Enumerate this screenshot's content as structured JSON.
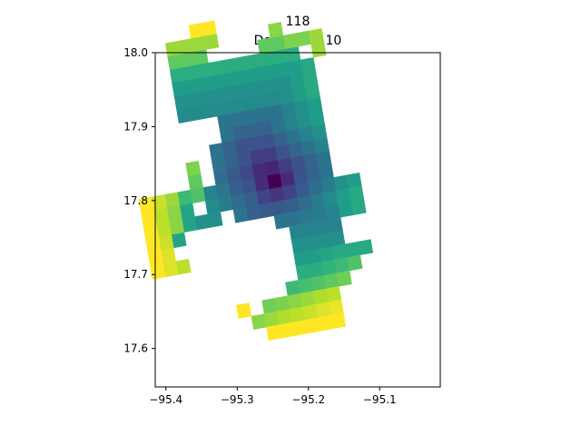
{
  "chart_data": {
    "type": "heatmap",
    "title": "118",
    "subtitle": "Degrees = 10",
    "xlabel": "",
    "ylabel": "",
    "xlim": [
      -95.415,
      -95.015
    ],
    "ylim": [
      17.548,
      18.0
    ],
    "x_ticks": [
      -95.4,
      -95.3,
      -95.2,
      -95.1
    ],
    "x_tick_labels": [
      "−95.4",
      "−95.3",
      "−95.2",
      "−95.1"
    ],
    "y_ticks": [
      17.6,
      17.7,
      17.8,
      17.9,
      18.0
    ],
    "y_tick_labels": [
      "17.6",
      "17.7",
      "17.8",
      "17.9",
      "18.0"
    ],
    "grid": false,
    "colormap": "viridis",
    "rotation_degrees": 10,
    "center": [
      -95.1836,
      17.7815
    ],
    "cell_size_deg": 0.0183,
    "cells": [
      {
        "i": -7,
        "j": 15,
        "v": 1.0
      },
      {
        "i": -6,
        "j": 15,
        "v": 1.0
      },
      {
        "i": -9,
        "j": 14,
        "v": 0.85
      },
      {
        "i": -8,
        "j": 14,
        "v": 0.85
      },
      {
        "i": -7,
        "j": 14,
        "v": 0.85
      },
      {
        "i": -6,
        "j": 14,
        "v": 0.85
      },
      {
        "i": -9,
        "j": 13,
        "v": 0.75
      },
      {
        "i": -8,
        "j": 13,
        "v": 0.75
      },
      {
        "i": -7,
        "j": 13,
        "v": 0.75
      },
      {
        "i": -9,
        "j": 12,
        "v": 0.62
      },
      {
        "i": -8,
        "j": 12,
        "v": 0.62
      },
      {
        "i": -7,
        "j": 12,
        "v": 0.62
      },
      {
        "i": -6,
        "j": 12,
        "v": 0.62
      },
      {
        "i": -5,
        "j": 12,
        "v": 0.62
      },
      {
        "i": -4,
        "j": 12,
        "v": 0.62
      },
      {
        "i": -3,
        "j": 12,
        "v": 0.62
      },
      {
        "i": -2,
        "j": 12,
        "v": 0.62
      },
      {
        "i": -1,
        "j": 12,
        "v": 0.62
      },
      {
        "i": 0,
        "j": 12,
        "v": 0.62
      },
      {
        "i": -9,
        "j": 11,
        "v": 0.55
      },
      {
        "i": -8,
        "j": 11,
        "v": 0.55
      },
      {
        "i": -7,
        "j": 11,
        "v": 0.55
      },
      {
        "i": -6,
        "j": 11,
        "v": 0.55
      },
      {
        "i": -5,
        "j": 11,
        "v": 0.55
      },
      {
        "i": -4,
        "j": 11,
        "v": 0.55
      },
      {
        "i": -3,
        "j": 11,
        "v": 0.55
      },
      {
        "i": -2,
        "j": 11,
        "v": 0.55
      },
      {
        "i": -1,
        "j": 11,
        "v": 0.55
      },
      {
        "i": 0,
        "j": 11,
        "v": 0.55
      },
      {
        "i": 1,
        "j": 11,
        "v": 0.6
      },
      {
        "i": -9,
        "j": 10,
        "v": 0.5
      },
      {
        "i": -8,
        "j": 10,
        "v": 0.5
      },
      {
        "i": -7,
        "j": 10,
        "v": 0.5
      },
      {
        "i": -6,
        "j": 10,
        "v": 0.5
      },
      {
        "i": -5,
        "j": 10,
        "v": 0.5
      },
      {
        "i": -4,
        "j": 10,
        "v": 0.5
      },
      {
        "i": -3,
        "j": 10,
        "v": 0.5
      },
      {
        "i": -2,
        "j": 10,
        "v": 0.5
      },
      {
        "i": -1,
        "j": 10,
        "v": 0.5
      },
      {
        "i": 0,
        "j": 10,
        "v": 0.55
      },
      {
        "i": 1,
        "j": 10,
        "v": 0.6
      },
      {
        "i": -9,
        "j": 9,
        "v": 0.48
      },
      {
        "i": -8,
        "j": 9,
        "v": 0.48
      },
      {
        "i": -7,
        "j": 9,
        "v": 0.48
      },
      {
        "i": -6,
        "j": 9,
        "v": 0.48
      },
      {
        "i": -5,
        "j": 9,
        "v": 0.48
      },
      {
        "i": -4,
        "j": 9,
        "v": 0.48
      },
      {
        "i": -3,
        "j": 9,
        "v": 0.48
      },
      {
        "i": -2,
        "j": 9,
        "v": 0.48
      },
      {
        "i": -1,
        "j": 9,
        "v": 0.5
      },
      {
        "i": 0,
        "j": 9,
        "v": 0.55
      },
      {
        "i": 1,
        "j": 9,
        "v": 0.6
      },
      {
        "i": -2,
        "j": 13,
        "v": 0.75
      },
      {
        "i": -1,
        "j": 13,
        "v": 0.75
      },
      {
        "i": 0,
        "j": 13,
        "v": 0.8
      },
      {
        "i": 1,
        "j": 13,
        "v": 0.8
      },
      {
        "i": 2,
        "j": 13,
        "v": 0.85
      },
      {
        "i": 2,
        "j": 12,
        "v": 0.85
      },
      {
        "i": -1,
        "j": 14,
        "v": 0.82
      },
      {
        "i": -6,
        "j": 8,
        "v": 0.38
      },
      {
        "i": -5,
        "j": 8,
        "v": 0.38
      },
      {
        "i": -4,
        "j": 8,
        "v": 0.38
      },
      {
        "i": -3,
        "j": 8,
        "v": 0.38
      },
      {
        "i": -2,
        "j": 8,
        "v": 0.38
      },
      {
        "i": -1,
        "j": 8,
        "v": 0.45
      },
      {
        "i": 0,
        "j": 8,
        "v": 0.5
      },
      {
        "i": 1,
        "j": 8,
        "v": 0.55
      },
      {
        "i": -6,
        "j": 7,
        "v": 0.38
      },
      {
        "i": -5,
        "j": 7,
        "v": 0.32
      },
      {
        "i": -4,
        "j": 7,
        "v": 0.32
      },
      {
        "i": -3,
        "j": 7,
        "v": 0.32
      },
      {
        "i": -2,
        "j": 7,
        "v": 0.38
      },
      {
        "i": -1,
        "j": 7,
        "v": 0.45
      },
      {
        "i": 0,
        "j": 7,
        "v": 0.5
      },
      {
        "i": 1,
        "j": 7,
        "v": 0.55
      },
      {
        "i": -7,
        "j": 6,
        "v": 0.38
      },
      {
        "i": -6,
        "j": 6,
        "v": 0.32
      },
      {
        "i": -5,
        "j": 6,
        "v": 0.25
      },
      {
        "i": -4,
        "j": 6,
        "v": 0.25
      },
      {
        "i": -3,
        "j": 6,
        "v": 0.25
      },
      {
        "i": -2,
        "j": 6,
        "v": 0.32
      },
      {
        "i": -1,
        "j": 6,
        "v": 0.38
      },
      {
        "i": 0,
        "j": 6,
        "v": 0.45
      },
      {
        "i": 1,
        "j": 6,
        "v": 0.5
      },
      {
        "i": -7,
        "j": 5,
        "v": 0.38
      },
      {
        "i": -6,
        "j": 5,
        "v": 0.32
      },
      {
        "i": -5,
        "j": 5,
        "v": 0.25
      },
      {
        "i": -4,
        "j": 5,
        "v": 0.18
      },
      {
        "i": -3,
        "j": 5,
        "v": 0.18
      },
      {
        "i": -2,
        "j": 5,
        "v": 0.25
      },
      {
        "i": -1,
        "j": 5,
        "v": 0.32
      },
      {
        "i": 0,
        "j": 5,
        "v": 0.38
      },
      {
        "i": 1,
        "j": 5,
        "v": 0.45
      },
      {
        "i": -7,
        "j": 4,
        "v": 0.35
      },
      {
        "i": -6,
        "j": 4,
        "v": 0.28
      },
      {
        "i": -5,
        "j": 4,
        "v": 0.22
      },
      {
        "i": -4,
        "j": 4,
        "v": 0.12
      },
      {
        "i": -3,
        "j": 4,
        "v": 0.1
      },
      {
        "i": -2,
        "j": 4,
        "v": 0.18
      },
      {
        "i": -1,
        "j": 4,
        "v": 0.25
      },
      {
        "i": 0,
        "j": 4,
        "v": 0.32
      },
      {
        "i": 1,
        "j": 4,
        "v": 0.38
      },
      {
        "i": -8,
        "j": 3,
        "v": 0.45
      },
      {
        "i": -7,
        "j": 3,
        "v": 0.4
      },
      {
        "i": -6,
        "j": 3,
        "v": 0.3
      },
      {
        "i": -5,
        "j": 3,
        "v": 0.25
      },
      {
        "i": -4,
        "j": 3,
        "v": 0.12
      },
      {
        "i": -3,
        "j": 3,
        "v": 0.0
      },
      {
        "i": -2,
        "j": 3,
        "v": 0.12
      },
      {
        "i": -1,
        "j": 3,
        "v": 0.25
      },
      {
        "i": 0,
        "j": 3,
        "v": 0.32
      },
      {
        "i": 1,
        "j": 3,
        "v": 0.38
      },
      {
        "i": -8,
        "j": 2,
        "v": 0.48
      },
      {
        "i": -7,
        "j": 2,
        "v": 0.42
      },
      {
        "i": -6,
        "j": 2,
        "v": 0.35
      },
      {
        "i": -5,
        "j": 2,
        "v": 0.3
      },
      {
        "i": -4,
        "j": 2,
        "v": 0.2
      },
      {
        "i": -3,
        "j": 2,
        "v": 0.15
      },
      {
        "i": -2,
        "j": 2,
        "v": 0.2
      },
      {
        "i": -1,
        "j": 2,
        "v": 0.28
      },
      {
        "i": 0,
        "j": 2,
        "v": 0.35
      },
      {
        "i": 1,
        "j": 2,
        "v": 0.42
      },
      {
        "i": 2,
        "j": 2,
        "v": 0.5
      },
      {
        "i": 3,
        "j": 2,
        "v": 0.55
      },
      {
        "i": -9,
        "j": 1,
        "v": 0.5
      },
      {
        "i": -8,
        "j": 1,
        "v": 0.5
      },
      {
        "i": -6,
        "j": 1,
        "v": 0.38
      },
      {
        "i": -5,
        "j": 1,
        "v": 0.3
      },
      {
        "i": -4,
        "j": 1,
        "v": 0.28
      },
      {
        "i": -3,
        "j": 1,
        "v": 0.28
      },
      {
        "i": -2,
        "j": 1,
        "v": 0.3
      },
      {
        "i": -1,
        "j": 1,
        "v": 0.35
      },
      {
        "i": 0,
        "j": 1,
        "v": 0.42
      },
      {
        "i": 1,
        "j": 1,
        "v": 0.48
      },
      {
        "i": 2,
        "j": 1,
        "v": 0.55
      },
      {
        "i": 3,
        "j": 1,
        "v": 0.6
      },
      {
        "i": -3,
        "j": 0,
        "v": 0.38
      },
      {
        "i": -2,
        "j": 0,
        "v": 0.38
      },
      {
        "i": -1,
        "j": 0,
        "v": 0.4
      },
      {
        "i": 0,
        "j": 0,
        "v": 0.42
      },
      {
        "i": 1,
        "j": 0,
        "v": 0.45
      },
      {
        "i": 2,
        "j": 0,
        "v": 0.55
      },
      {
        "i": 3,
        "j": 0,
        "v": 0.6
      },
      {
        "i": -2,
        "j": -1,
        "v": 0.45
      },
      {
        "i": -1,
        "j": -1,
        "v": 0.45
      },
      {
        "i": 0,
        "j": -1,
        "v": 0.45
      },
      {
        "i": 1,
        "j": -1,
        "v": 0.45
      },
      {
        "i": -2,
        "j": -2,
        "v": 0.5
      },
      {
        "i": -1,
        "j": -2,
        "v": 0.5
      },
      {
        "i": 0,
        "j": -2,
        "v": 0.5
      },
      {
        "i": 1,
        "j": -2,
        "v": 0.5
      },
      {
        "i": -2,
        "j": -3,
        "v": 0.55
      },
      {
        "i": -1,
        "j": -3,
        "v": 0.55
      },
      {
        "i": 0,
        "j": -3,
        "v": 0.58
      },
      {
        "i": 1,
        "j": -3,
        "v": 0.6
      },
      {
        "i": 2,
        "j": -3,
        "v": 0.6
      },
      {
        "i": 3,
        "j": -3,
        "v": 0.6
      },
      {
        "i": -2,
        "j": -4,
        "v": 0.62
      },
      {
        "i": -1,
        "j": -4,
        "v": 0.62
      },
      {
        "i": 0,
        "j": -4,
        "v": 0.65
      },
      {
        "i": 1,
        "j": -4,
        "v": 0.68
      },
      {
        "i": 2,
        "j": -4,
        "v": 0.72
      },
      {
        "i": -3,
        "j": -5,
        "v": 0.68
      },
      {
        "i": -2,
        "j": -5,
        "v": 0.7
      },
      {
        "i": -1,
        "j": -5,
        "v": 0.72
      },
      {
        "i": 0,
        "j": -5,
        "v": 0.75
      },
      {
        "i": 1,
        "j": -5,
        "v": 0.78
      },
      {
        "i": -5,
        "j": -6,
        "v": 0.78
      },
      {
        "i": -4,
        "j": -6,
        "v": 0.8
      },
      {
        "i": -3,
        "j": -6,
        "v": 0.82
      },
      {
        "i": -2,
        "j": -6,
        "v": 0.85
      },
      {
        "i": -1,
        "j": -6,
        "v": 0.88
      },
      {
        "i": 0,
        "j": -6,
        "v": 0.9
      },
      {
        "i": -6,
        "j": -7,
        "v": 0.82
      },
      {
        "i": -5,
        "j": -7,
        "v": 0.85
      },
      {
        "i": -4,
        "j": -7,
        "v": 0.88
      },
      {
        "i": -3,
        "j": -7,
        "v": 0.9
      },
      {
        "i": -2,
        "j": -7,
        "v": 0.92
      },
      {
        "i": -1,
        "j": -7,
        "v": 0.95
      },
      {
        "i": 0,
        "j": -7,
        "v": 0.97
      },
      {
        "i": -7,
        "j": -6,
        "v": 1.0
      },
      {
        "i": -5,
        "j": -8,
        "v": 1.0
      },
      {
        "i": -4,
        "j": -8,
        "v": 1.0
      },
      {
        "i": -3,
        "j": -8,
        "v": 1.0
      },
      {
        "i": -2,
        "j": -8,
        "v": 1.0
      },
      {
        "i": -1,
        "j": -8,
        "v": 1.0
      },
      {
        "i": 0,
        "j": -8,
        "v": 1.0
      },
      {
        "i": -10,
        "j": 2,
        "v": 0.58
      },
      {
        "i": -10,
        "j": 1,
        "v": 0.58
      },
      {
        "i": -11,
        "j": 0,
        "v": 0.58
      },
      {
        "i": -9,
        "j": 5,
        "v": 0.8
      },
      {
        "i": -9,
        "j": 4,
        "v": 0.75
      },
      {
        "i": -9,
        "j": 3,
        "v": 0.72
      },
      {
        "i": -10,
        "j": 3,
        "v": 0.68
      },
      {
        "i": -11,
        "j": 3,
        "v": 0.85
      },
      {
        "i": -12,
        "j": 3,
        "v": 0.92
      },
      {
        "i": -13,
        "j": 3,
        "v": 1.0
      },
      {
        "i": -11,
        "j": 2,
        "v": 0.82
      },
      {
        "i": -12,
        "j": 2,
        "v": 0.9
      },
      {
        "i": -13,
        "j": 2,
        "v": 1.0
      },
      {
        "i": -11,
        "j": 1,
        "v": 0.82
      },
      {
        "i": -12,
        "j": 1,
        "v": 0.9
      },
      {
        "i": -13,
        "j": 1,
        "v": 1.0
      },
      {
        "i": -12,
        "j": 0,
        "v": 0.92
      },
      {
        "i": -13,
        "j": 0,
        "v": 1.0
      },
      {
        "i": -12,
        "j": -1,
        "v": 0.95
      },
      {
        "i": -13,
        "j": -1,
        "v": 1.0
      },
      {
        "i": -11,
        "j": -2,
        "v": 0.9
      },
      {
        "i": -12,
        "j": -2,
        "v": 0.95
      },
      {
        "i": -13,
        "j": -2,
        "v": 1.0
      }
    ]
  }
}
